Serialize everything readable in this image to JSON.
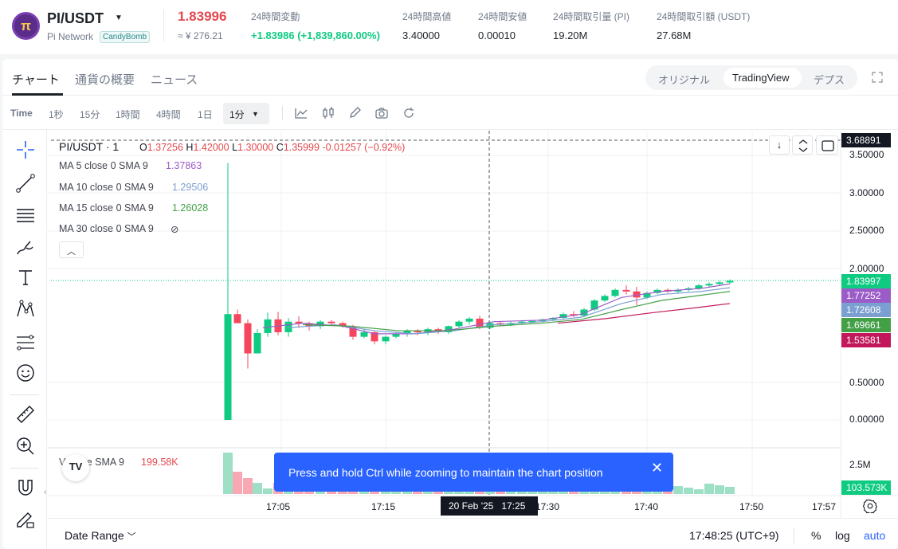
{
  "header": {
    "logo_glyph": "π",
    "pair": "PI/USDT",
    "network": "Pi Network",
    "tag": "CandyBomb",
    "last_price": "1.83996",
    "fiat_price": "≈ ¥ 276.21",
    "stats": [
      {
        "label": "24時間変動",
        "value": "+1.83986 (+1,839,860.00%)"
      },
      {
        "label": "24時間高値",
        "value": "3.40000"
      },
      {
        "label": "24時間安値",
        "value": "0.00010"
      },
      {
        "label": "24時間取引量 (PI)",
        "value": "19.20M"
      },
      {
        "label": "24時間取引額 (USDT)",
        "value": "27.68M"
      }
    ]
  },
  "tabs": [
    "チャート",
    "通貨の概要",
    "ニュース"
  ],
  "view_modes": [
    "オリジナル",
    "TradingView",
    "デプス"
  ],
  "toolbar": {
    "intervals": [
      "Time",
      "1秒",
      "15分",
      "1時間",
      "4時間",
      "1日"
    ],
    "selected_interval": "1分"
  },
  "legend": {
    "symbol": "PI/USDT · 1",
    "open": "1.37256",
    "high": "1.42000",
    "low": "1.30000",
    "close": "1.35999",
    "change": "-0.01257 (−0.92%)",
    "ma": [
      {
        "label": "MA 5 close 0 SMA 9",
        "value": "1.37863",
        "color": "#9c5cc8"
      },
      {
        "label": "MA 10 close 0 SMA 9",
        "value": "1.29506",
        "color": "#7b9fd0"
      },
      {
        "label": "MA 15 close 0 SMA 9",
        "value": "1.26028",
        "color": "#43a047"
      },
      {
        "label": "MA 30 close 0 SMA 9",
        "value": "⊘",
        "color": "#434651"
      }
    ],
    "volume_label": "Volume SMA 9",
    "volume_value": "199.58K"
  },
  "price_axis": [
    "3.50000",
    "3.00000",
    "2.50000",
    "2.00000",
    "0.50000",
    "0.00000"
  ],
  "crosshair_price": "3.68891",
  "price_tags": [
    {
      "value": "1.83997",
      "color": "#0ecb81"
    },
    {
      "value": "1.77252",
      "color": "#9c5cc8"
    },
    {
      "value": "1.72608",
      "color": "#7b9fd0"
    },
    {
      "value": "1.69661",
      "color": "#43a047"
    },
    {
      "value": "1.53581",
      "color": "#c2185b"
    }
  ],
  "volume_axis": "2.5M",
  "volume_tag": "103.573K",
  "time_axis": [
    "17:05",
    "17:15",
    "17:30",
    "17:40",
    "17:50",
    "17:57"
  ],
  "crosshair_time": "20 Feb '25   17:25",
  "toast": "Press and hold Ctrl while zooming to maintain the chart position",
  "footer": {
    "date_range": "Date Range",
    "clock": "17:48:25 (UTC+9)",
    "percent": "%",
    "log": "log",
    "auto": "auto"
  },
  "colors": {
    "up": "#0ecb81",
    "down": "#f6465d",
    "accent": "#2962ff"
  }
}
